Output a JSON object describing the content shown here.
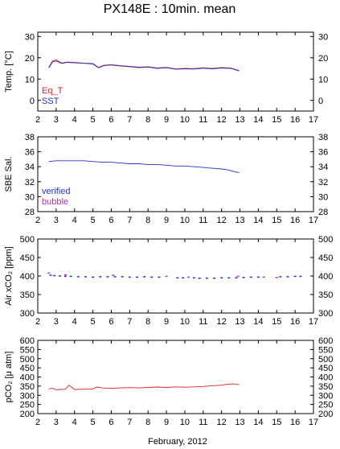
{
  "title": "PX148E : 10min. mean",
  "xlabel": "February, 2012",
  "colors": {
    "red": "#dd2222",
    "blue": "#2233cc",
    "magenta": "#cc22cc",
    "axis": "#000000"
  },
  "chart_data": [
    {
      "type": "line",
      "ylabel": "Temp. [°C]",
      "xlim": [
        2,
        17
      ],
      "ylim": [
        -5,
        32
      ],
      "xticks": [
        2,
        3,
        4,
        5,
        6,
        7,
        8,
        9,
        10,
        11,
        12,
        13,
        14,
        15,
        16,
        17
      ],
      "yticks": [
        0,
        10,
        20,
        30
      ],
      "legend": [
        "Eq_T",
        "SST"
      ],
      "legend_placement": "bottom-left",
      "series": [
        {
          "name": "Eq_T",
          "color": "red",
          "x": [
            2.6,
            2.8,
            3.0,
            3.3,
            3.6,
            4.0,
            4.5,
            5.0,
            5.3,
            5.6,
            6.0,
            6.5,
            7.0,
            7.5,
            8.0,
            8.5,
            9.0,
            9.5,
            10.0,
            10.5,
            11.0,
            11.5,
            12.0,
            12.5,
            12.95
          ],
          "y": [
            15.5,
            18.5,
            19.0,
            17.5,
            18.0,
            17.8,
            17.5,
            17.3,
            15.5,
            16.5,
            16.8,
            16.3,
            16.0,
            15.6,
            15.8,
            15.2,
            15.5,
            14.8,
            15.0,
            14.9,
            15.3,
            15.0,
            15.4,
            15.2,
            14.0
          ]
        },
        {
          "name": "SST",
          "color": "blue",
          "x": [
            2.6,
            2.8,
            3.0,
            3.3,
            3.6,
            4.0,
            4.5,
            5.0,
            5.3,
            5.6,
            6.0,
            6.5,
            7.0,
            7.5,
            8.0,
            8.5,
            9.0,
            9.5,
            10.0,
            10.5,
            11.0,
            11.5,
            12.0,
            12.5,
            12.95
          ],
          "y": [
            15.2,
            18.0,
            18.5,
            17.3,
            17.8,
            17.6,
            17.4,
            17.1,
            15.3,
            16.3,
            16.6,
            16.1,
            15.8,
            15.4,
            15.6,
            15.0,
            15.3,
            14.6,
            14.8,
            14.7,
            15.1,
            14.8,
            15.2,
            15.0,
            13.8
          ]
        }
      ]
    },
    {
      "type": "line",
      "ylabel": "SBE Sal.",
      "xlim": [
        2,
        17
      ],
      "ylim": [
        28,
        38
      ],
      "xticks": [
        2,
        3,
        4,
        5,
        6,
        7,
        8,
        9,
        10,
        11,
        12,
        13,
        14,
        15,
        16,
        17
      ],
      "yticks": [
        28,
        30,
        32,
        34,
        36,
        38
      ],
      "legend": [
        "verified",
        "bubble"
      ],
      "legend_placement": "bottom-left",
      "series": [
        {
          "name": "verified",
          "color": "blue",
          "x": [
            2.6,
            3.0,
            3.5,
            4.0,
            4.5,
            5.0,
            5.5,
            6.0,
            6.5,
            7.0,
            7.5,
            8.0,
            8.5,
            9.0,
            9.5,
            10.0,
            10.5,
            11.0,
            11.5,
            12.0,
            12.3,
            12.6,
            12.95
          ],
          "y": [
            34.7,
            34.8,
            34.8,
            34.8,
            34.8,
            34.7,
            34.6,
            34.6,
            34.5,
            34.4,
            34.4,
            34.3,
            34.3,
            34.2,
            34.1,
            34.1,
            34.0,
            33.9,
            33.8,
            33.7,
            33.6,
            33.4,
            33.2
          ]
        },
        {
          "name": "bubble",
          "color": "magenta",
          "x": [],
          "y": []
        }
      ]
    },
    {
      "type": "scatter",
      "ylabel": "Air xCO₂ [ppm]",
      "xlim": [
        2,
        17
      ],
      "ylim": [
        300,
        500
      ],
      "xticks": [
        2,
        3,
        4,
        5,
        6,
        7,
        8,
        9,
        10,
        11,
        12,
        13,
        14,
        15,
        16,
        17
      ],
      "yticks": [
        300,
        350,
        400,
        450,
        500
      ],
      "series": [
        {
          "name": "",
          "color": "blue",
          "x": [
            2.7,
            2.9,
            3.2,
            3.5,
            3.8,
            4.2,
            4.6,
            5.0,
            5.4,
            5.8,
            6.2,
            6.6,
            7.0,
            7.4,
            7.8,
            8.2,
            8.6,
            9.6,
            9.9,
            10.5,
            10.8,
            11.2,
            11.6,
            12.0,
            12.4,
            12.8,
            13.2,
            13.6,
            14.0,
            15.2,
            15.6,
            16.0,
            16.3
          ],
          "y": [
            402,
            401,
            400,
            399,
            399,
            398,
            398,
            397,
            398,
            398,
            398,
            398,
            397,
            397,
            398,
            397,
            397,
            395,
            395,
            395,
            394,
            394,
            394,
            395,
            395,
            395,
            396,
            397,
            397,
            398,
            398,
            399,
            399
          ]
        },
        {
          "name": "",
          "color": "magenta",
          "x": [
            2.6,
            3.5,
            6.1,
            9.0,
            10.2,
            12.9,
            14.3,
            15.0
          ],
          "y": [
            408,
            403,
            402,
            399,
            397,
            399,
            397,
            396
          ]
        }
      ]
    },
    {
      "type": "line",
      "ylabel": "pCO₂ [μ atm]",
      "xlim": [
        2,
        17
      ],
      "ylim": [
        200,
        600
      ],
      "xticks": [
        2,
        3,
        4,
        5,
        6,
        7,
        8,
        9,
        10,
        11,
        12,
        13,
        14,
        15,
        16,
        17
      ],
      "yticks": [
        200,
        250,
        300,
        350,
        400,
        450,
        500,
        550,
        600
      ],
      "series": [
        {
          "name": "",
          "color": "red",
          "x": [
            2.6,
            2.8,
            3.0,
            3.2,
            3.5,
            3.7,
            4.0,
            4.5,
            5.0,
            5.2,
            5.5,
            6.0,
            6.5,
            7.0,
            7.5,
            8.0,
            8.5,
            9.0,
            9.5,
            10.0,
            10.5,
            11.0,
            11.5,
            12.0,
            12.3,
            12.6,
            12.95
          ],
          "y": [
            335,
            338,
            330,
            332,
            333,
            355,
            332,
            333,
            335,
            345,
            340,
            338,
            340,
            342,
            340,
            343,
            345,
            343,
            346,
            344,
            346,
            348,
            352,
            355,
            360,
            362,
            358
          ]
        }
      ]
    }
  ]
}
